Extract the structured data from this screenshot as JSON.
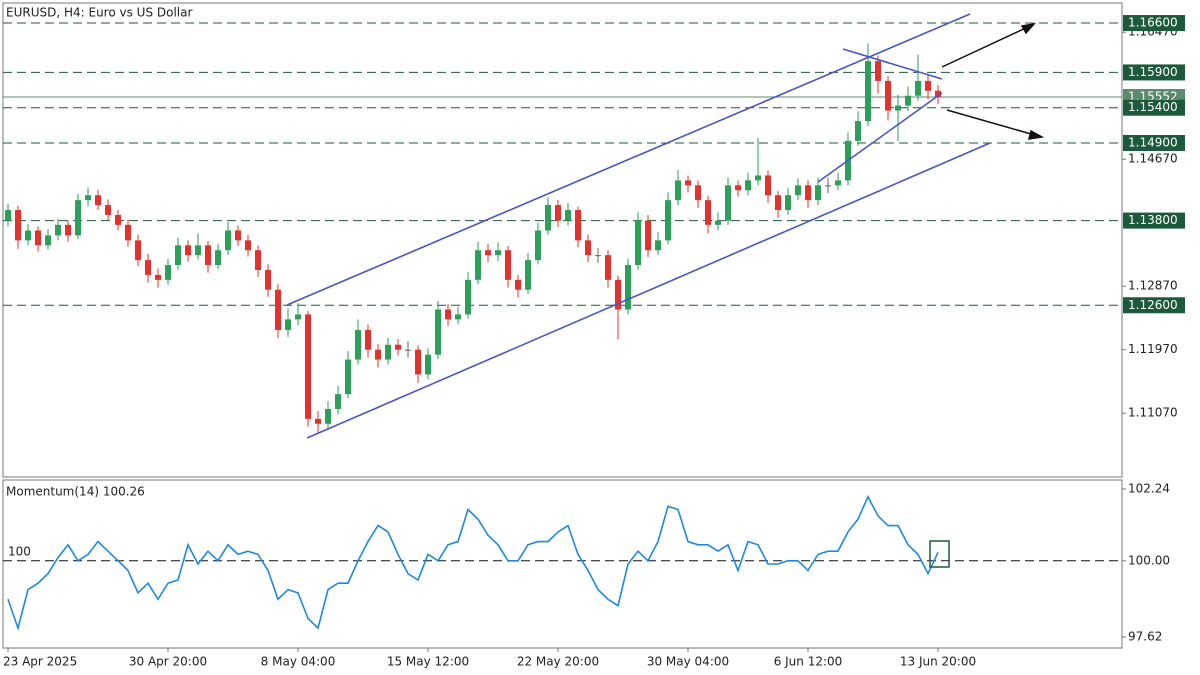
{
  "chart_data": [
    {
      "type": "candlestick",
      "title": "EURUSD, H4:  Euro vs US Dollar",
      "categories": [
        "23 Apr 2025",
        null,
        null,
        null,
        null,
        null,
        null,
        null,
        null,
        null,
        null,
        null,
        null,
        null,
        null,
        null,
        "30 Apr 20:00",
        null,
        null,
        null,
        null,
        null,
        null,
        null,
        null,
        null,
        null,
        null,
        null,
        "8 May 04:00",
        null,
        null,
        null,
        null,
        null,
        null,
        null,
        null,
        null,
        null,
        null,
        null,
        "15 May 12:00",
        null,
        null,
        null,
        null,
        null,
        null,
        null,
        null,
        null,
        null,
        null,
        null,
        "22 May 20:00",
        null,
        null,
        null,
        null,
        null,
        null,
        null,
        null,
        null,
        null,
        null,
        null,
        "30 May 04:00",
        null,
        null,
        null,
        null,
        null,
        null,
        null,
        null,
        null,
        null,
        null,
        "6 Jun 12:00",
        null,
        null,
        null,
        null,
        null,
        null,
        null,
        null,
        null,
        null,
        null,
        null,
        "13 Jun 20:00"
      ],
      "candles": [
        [
          1.138,
          1.1404,
          1.1372,
          1.1395
        ],
        [
          1.1395,
          1.1401,
          1.134,
          1.1352
        ],
        [
          1.1352,
          1.1375,
          1.1345,
          1.1366
        ],
        [
          1.1366,
          1.1372,
          1.1336,
          1.1345
        ],
        [
          1.1345,
          1.1368,
          1.1339,
          1.1359
        ],
        [
          1.1359,
          1.1383,
          1.1352,
          1.1374
        ],
        [
          1.1374,
          1.138,
          1.135,
          1.1359
        ],
        [
          1.1359,
          1.1418,
          1.1354,
          1.1409
        ],
        [
          1.1409,
          1.1427,
          1.14,
          1.1416
        ],
        [
          1.1416,
          1.1424,
          1.1395,
          1.1402
        ],
        [
          1.1402,
          1.141,
          1.138,
          1.1388
        ],
        [
          1.1388,
          1.1395,
          1.1366,
          1.1374
        ],
        [
          1.1374,
          1.1381,
          1.1343,
          1.1352
        ],
        [
          1.1352,
          1.136,
          1.1315,
          1.1324
        ],
        [
          1.1324,
          1.1333,
          1.1292,
          1.1303
        ],
        [
          1.1303,
          1.1312,
          1.1285,
          1.1296
        ],
        [
          1.1296,
          1.1326,
          1.1289,
          1.1317
        ],
        [
          1.1317,
          1.1356,
          1.131,
          1.1345
        ],
        [
          1.1345,
          1.1352,
          1.1322,
          1.1331
        ],
        [
          1.1331,
          1.1362,
          1.1325,
          1.1345
        ],
        [
          1.1345,
          1.1351,
          1.1306,
          1.1317
        ],
        [
          1.1317,
          1.1347,
          1.1311,
          1.1338
        ],
        [
          1.1338,
          1.1378,
          1.1331,
          1.1366
        ],
        [
          1.1366,
          1.1373,
          1.1344,
          1.1352
        ],
        [
          1.1352,
          1.136,
          1.1329,
          1.1338
        ],
        [
          1.1338,
          1.1345,
          1.13,
          1.131
        ],
        [
          1.131,
          1.1318,
          1.1272,
          1.1282
        ],
        [
          1.1282,
          1.129,
          1.1213,
          1.1225
        ],
        [
          1.1225,
          1.1256,
          1.1215,
          1.124
        ],
        [
          1.124,
          1.1263,
          1.1232,
          1.1247
        ],
        [
          1.1247,
          1.1252,
          1.1088,
          1.1099
        ],
        [
          1.1099,
          1.111,
          1.1078,
          1.1092
        ],
        [
          1.1092,
          1.1124,
          1.1083,
          1.1113
        ],
        [
          1.1113,
          1.1146,
          1.1105,
          1.1134
        ],
        [
          1.1134,
          1.1195,
          1.1128,
          1.1183
        ],
        [
          1.1183,
          1.124,
          1.1176,
          1.1225
        ],
        [
          1.1225,
          1.1233,
          1.1186,
          1.1197
        ],
        [
          1.1197,
          1.1205,
          1.1172,
          1.1183
        ],
        [
          1.1183,
          1.1214,
          1.1176,
          1.1204
        ],
        [
          1.1204,
          1.1212,
          1.1189,
          1.1197
        ],
        [
          1.1197,
          1.1209,
          1.1186,
          1.1197
        ],
        [
          1.1197,
          1.1203,
          1.115,
          1.1162
        ],
        [
          1.1162,
          1.1199,
          1.1155,
          1.119
        ],
        [
          1.119,
          1.1266,
          1.1184,
          1.1254
        ],
        [
          1.1254,
          1.1262,
          1.1231,
          1.124
        ],
        [
          1.124,
          1.1258,
          1.1233,
          1.1247
        ],
        [
          1.1247,
          1.1307,
          1.1241,
          1.1296
        ],
        [
          1.1296,
          1.135,
          1.129,
          1.1338
        ],
        [
          1.1338,
          1.1347,
          1.1321,
          1.1331
        ],
        [
          1.1331,
          1.1349,
          1.1323,
          1.1338
        ],
        [
          1.1338,
          1.1344,
          1.1285,
          1.1296
        ],
        [
          1.1296,
          1.1303,
          1.1271,
          1.1282
        ],
        [
          1.1282,
          1.1334,
          1.1276,
          1.1324
        ],
        [
          1.1324,
          1.1377,
          1.1318,
          1.1366
        ],
        [
          1.1366,
          1.1413,
          1.136,
          1.1402
        ],
        [
          1.1402,
          1.1409,
          1.1371,
          1.138
        ],
        [
          1.138,
          1.1405,
          1.1373,
          1.1395
        ],
        [
          1.1395,
          1.14,
          1.1342,
          1.1352
        ],
        [
          1.1352,
          1.136,
          1.1321,
          1.1331
        ],
        [
          1.1331,
          1.1341,
          1.132,
          1.1331
        ],
        [
          1.1331,
          1.1338,
          1.1285,
          1.1296
        ],
        [
          1.1296,
          1.1302,
          1.1212,
          1.1254
        ],
        [
          1.1254,
          1.1326,
          1.1247,
          1.1317
        ],
        [
          1.1317,
          1.1392,
          1.131,
          1.138
        ],
        [
          1.138,
          1.1388,
          1.1328,
          1.1338
        ],
        [
          1.1338,
          1.1364,
          1.1331,
          1.1352
        ],
        [
          1.1352,
          1.142,
          1.1346,
          1.1409
        ],
        [
          1.1409,
          1.1452,
          1.1402,
          1.1437
        ],
        [
          1.1437,
          1.1444,
          1.142,
          1.143
        ],
        [
          1.143,
          1.1437,
          1.1398,
          1.1409
        ],
        [
          1.1409,
          1.1415,
          1.1362,
          1.1374
        ],
        [
          1.1374,
          1.1392,
          1.1366,
          1.138
        ],
        [
          1.138,
          1.1441,
          1.1374,
          1.143
        ],
        [
          1.143,
          1.1437,
          1.1414,
          1.1423
        ],
        [
          1.1423,
          1.1448,
          1.1416,
          1.1437
        ],
        [
          1.1437,
          1.1497,
          1.143,
          1.1444
        ],
        [
          1.1444,
          1.1451,
          1.1405,
          1.1416
        ],
        [
          1.1416,
          1.1422,
          1.1384,
          1.1395
        ],
        [
          1.1395,
          1.1426,
          1.1388,
          1.1416
        ],
        [
          1.1416,
          1.144,
          1.1409,
          1.143
        ],
        [
          1.143,
          1.1437,
          1.1398,
          1.1409
        ],
        [
          1.1409,
          1.1441,
          1.1402,
          1.143
        ],
        [
          1.143,
          1.1441,
          1.1419,
          1.143
        ],
        [
          1.143,
          1.1448,
          1.1423,
          1.1437
        ],
        [
          1.1437,
          1.1505,
          1.143,
          1.1493
        ],
        [
          1.1493,
          1.1535,
          1.1486,
          1.1521
        ],
        [
          1.1521,
          1.1631,
          1.1514,
          1.1606
        ],
        [
          1.1606,
          1.1614,
          1.156,
          1.1578
        ],
        [
          1.1578,
          1.1585,
          1.1522,
          1.1536
        ],
        [
          1.1536,
          1.1558,
          1.1493,
          1.1543
        ],
        [
          1.1543,
          1.157,
          1.1535,
          1.1557
        ],
        [
          1.1557,
          1.1615,
          1.155,
          1.1578
        ],
        [
          1.1578,
          1.1586,
          1.1552,
          1.1564
        ],
        [
          1.1564,
          1.1572,
          1.1545,
          1.1555
        ]
      ],
      "color_up": "#2e9e5b",
      "color_down": "#e0332f",
      "ylim": [
        1.1018,
        1.1687
      ],
      "yticks": [
        {
          "value": 1.1647,
          "label": "1.16470"
        },
        {
          "value": 1.1467,
          "label": "1.14670"
        },
        {
          "value": 1.1287,
          "label": "1.12870"
        },
        {
          "value": 1.1197,
          "label": "1.11970"
        },
        {
          "value": 1.1107,
          "label": "1.11070"
        }
      ],
      "levels": [
        {
          "value": 1.166,
          "label": "1.16600"
        },
        {
          "value": 1.159,
          "label": "1.15900"
        },
        {
          "value": 1.154,
          "label": "1.15400"
        },
        {
          "value": 1.149,
          "label": "1.14900"
        },
        {
          "value": 1.138,
          "label": "1.13800"
        },
        {
          "value": 1.126,
          "label": "1.12600"
        }
      ],
      "level_color": "#1d5a3c",
      "current_price": {
        "value": 1.15552,
        "label": "1.15552"
      },
      "current_color": "#5c8a6c"
    },
    {
      "type": "line",
      "title": "Momentum(14) 100.26",
      "color": "#1e88e5",
      "values": [
        98.8,
        97.9,
        99.1,
        99.3,
        99.6,
        100.1,
        100.5,
        100.0,
        100.2,
        100.6,
        100.3,
        100.0,
        99.7,
        99.0,
        99.3,
        98.8,
        99.3,
        99.4,
        100.5,
        99.9,
        100.3,
        100.0,
        100.5,
        100.2,
        100.3,
        100.2,
        99.7,
        98.8,
        99.1,
        99.0,
        98.2,
        97.9,
        99.1,
        99.3,
        99.3,
        100.0,
        100.6,
        101.1,
        100.9,
        100.2,
        99.6,
        99.4,
        100.2,
        100.0,
        100.5,
        100.6,
        101.6,
        101.3,
        100.8,
        100.5,
        100.0,
        100.0,
        100.5,
        100.6,
        100.6,
        100.9,
        101.1,
        100.2,
        99.7,
        99.1,
        98.8,
        98.6,
        99.9,
        100.3,
        100.0,
        100.6,
        101.7,
        101.6,
        100.6,
        100.5,
        100.5,
        100.3,
        100.5,
        99.7,
        100.6,
        100.5,
        99.9,
        99.9,
        100.0,
        100.0,
        99.7,
        100.2,
        100.3,
        100.3,
        100.9,
        101.3,
        102.0,
        101.4,
        101.1,
        101.1,
        100.5,
        100.2,
        99.6,
        100.26
      ],
      "ylim": [
        97.31,
        102.49
      ],
      "yticks": [
        102.24,
        {
          "value": 100,
          "label": "100.00"
        },
        97.62
      ],
      "level": {
        "value": 100,
        "label": "100"
      }
    }
  ]
}
